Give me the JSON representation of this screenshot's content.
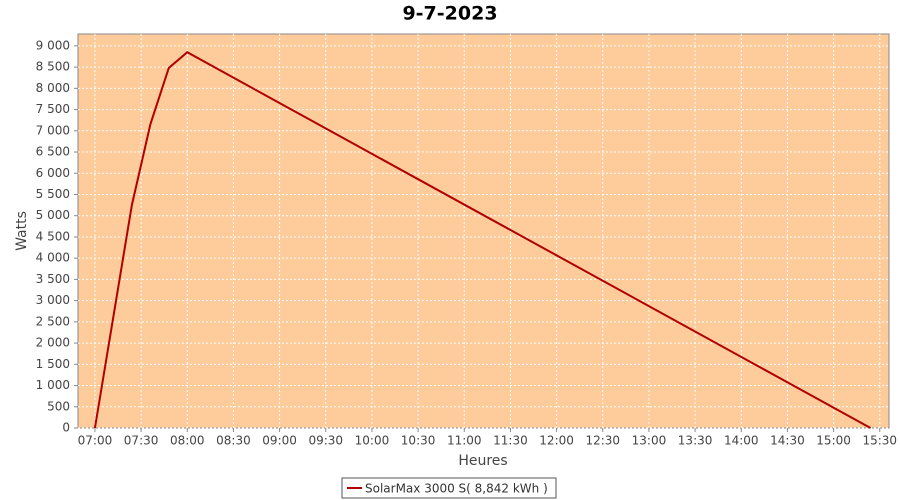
{
  "chart_data": {
    "type": "line",
    "title": "9-7-2023",
    "x_label": "Heures",
    "y_label": "Watts",
    "x": [
      "07:00",
      "07:24",
      "07:36",
      "07:48",
      "08:00",
      "15:24"
    ],
    "series": [
      {
        "name": "SolarMax 3000 S( 8,842 kWh )",
        "color": "#b00000",
        "values": [
          0,
          5250,
          7150,
          8480,
          8850,
          0
        ]
      }
    ],
    "xlim": [
      "06:49",
      "15:36"
    ],
    "xticks": [
      "07:00",
      "07:30",
      "08:00",
      "08:30",
      "09:00",
      "09:30",
      "10:00",
      "10:30",
      "11:00",
      "11:30",
      "12:00",
      "12:30",
      "13:00",
      "13:30",
      "14:00",
      "14:30",
      "15:00",
      "15:30"
    ],
    "ylim": [
      0,
      9280
    ],
    "yticks": [
      0,
      500,
      {
        "value": 1000,
        "label": "1 000"
      },
      {
        "value": 1500,
        "label": "1 500"
      },
      {
        "value": 2000,
        "label": "2 000"
      },
      {
        "value": 2500,
        "label": "2 500"
      },
      {
        "value": 3000,
        "label": "3 000"
      },
      {
        "value": 3500,
        "label": "3 500"
      },
      {
        "value": 4000,
        "label": "4 000"
      },
      {
        "value": 4500,
        "label": "4 500"
      },
      {
        "value": 5000,
        "label": "5 000"
      },
      {
        "value": 5500,
        "label": "5 500"
      },
      {
        "value": 6000,
        "label": "6 000"
      },
      {
        "value": 6500,
        "label": "6 500"
      },
      {
        "value": 7000,
        "label": "7 000"
      },
      {
        "value": 7500,
        "label": "7 500"
      },
      {
        "value": 8000,
        "label": "8 000"
      },
      {
        "value": 8500,
        "label": "8 500"
      },
      {
        "value": 9000,
        "label": "9 000"
      }
    ],
    "grid": true,
    "plot_background": "#fecb9b"
  }
}
